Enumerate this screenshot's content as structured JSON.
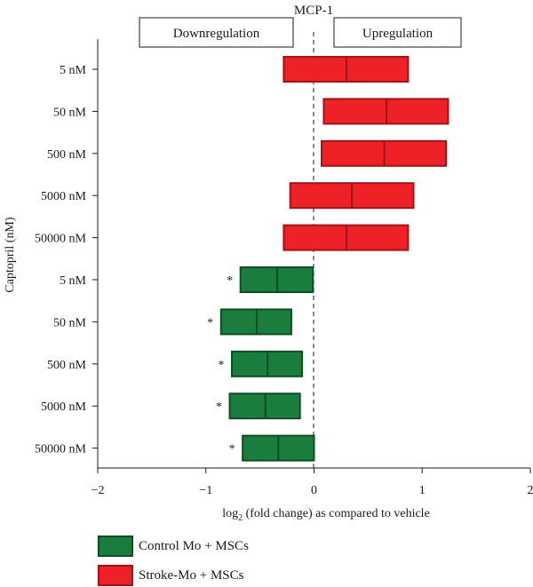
{
  "chart_data": {
    "type": "bar",
    "title": "MCP-1",
    "xlabel": "log2 (fold change) as compared to vehicle",
    "xlabel_parts": {
      "prefix": "log",
      "subscript": "2",
      "suffix": " (fold change) as compared to vehicle"
    },
    "ylabel": "Captopril (nM)",
    "xlim": [
      -2,
      2
    ],
    "xticks": [
      -2,
      -1,
      0,
      1,
      2
    ],
    "xtick_labels": [
      "−2",
      "−1",
      "0",
      "1",
      "2"
    ],
    "reference_line": 0,
    "annotations": {
      "left_box": "Downregulation",
      "right_box": "Upregulation"
    },
    "categories": [
      "5 nM",
      "50 nM",
      "500 nM",
      "5000 nM",
      "50000 nM",
      "5 nM",
      "50 nM",
      "500 nM",
      "5000 nM",
      "50000 nM"
    ],
    "series": [
      {
        "name": "Stroke-Mo + MSCs",
        "color": "#ee2127",
        "edge": "#a01419",
        "rows": [
          0,
          1,
          2,
          3,
          4
        ],
        "low": [
          -0.28,
          0.09,
          0.07,
          -0.22,
          -0.28
        ],
        "mid": [
          0.3,
          0.67,
          0.65,
          0.35,
          0.3
        ],
        "high": [
          0.87,
          1.24,
          1.22,
          0.92,
          0.87
        ],
        "significant": [
          false,
          false,
          false,
          false,
          false
        ]
      },
      {
        "name": "Control Mo + MSCs",
        "color": "#1a7d3e",
        "edge": "#0e4d24",
        "rows": [
          5,
          6,
          7,
          8,
          9
        ],
        "low": [
          -0.68,
          -0.86,
          -0.76,
          -0.78,
          -0.66
        ],
        "mid": [
          -0.34,
          -0.53,
          -0.43,
          -0.45,
          -0.33
        ],
        "high": [
          -0.01,
          -0.21,
          -0.11,
          -0.13,
          0.0
        ],
        "significant": [
          true,
          true,
          true,
          true,
          true
        ]
      }
    ],
    "significance_marker": "*",
    "legend": {
      "position": "bottom-left",
      "items": [
        {
          "label": "Control Mo + MSCs",
          "color": "#1a7d3e",
          "edge": "#0e4d24"
        },
        {
          "label": "Stroke-Mo + MSCs",
          "color": "#ee2127",
          "edge": "#a01419"
        }
      ]
    },
    "grid": false
  }
}
